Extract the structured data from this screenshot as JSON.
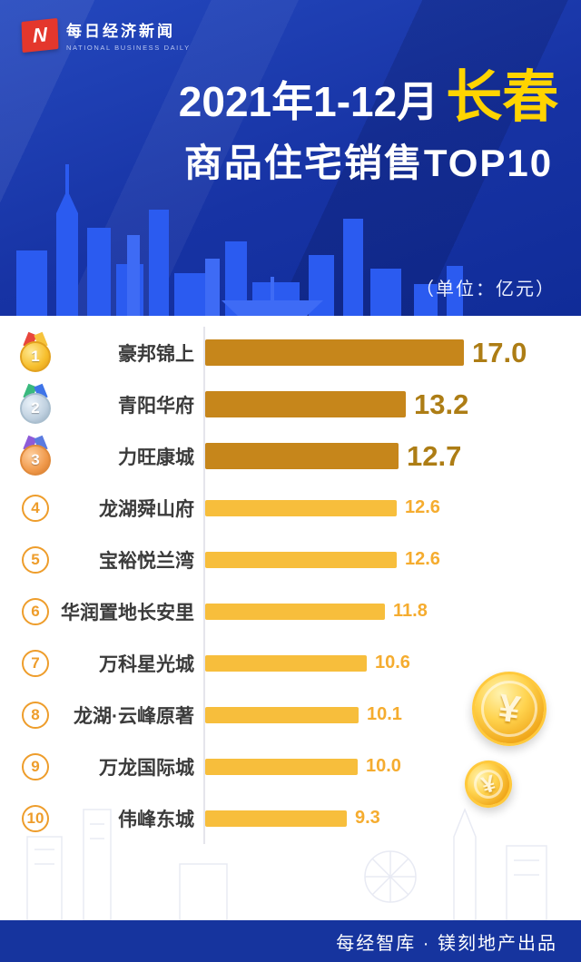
{
  "brand": {
    "logo_cn": "每日经济新闻",
    "logo_en": "NATIONAL BUSINESS DAILY",
    "logo_letter": "N"
  },
  "header": {
    "title_prefix": "2021年1-12月",
    "title_city": "长春",
    "title_line2": "商品住宅销售TOP10",
    "unit_note": "（单位：亿元）"
  },
  "chart_data": {
    "type": "bar",
    "orientation": "horizontal",
    "title": "2021年1-12月长春商品住宅销售TOP10",
    "unit": "亿元",
    "categories": [
      "豪邦锦上",
      "青阳华府",
      "力旺康城",
      "龙湖舜山府",
      "宝裕悦兰湾",
      "华润置地长安里",
      "万科星光城",
      "龙湖·云峰原著",
      "万龙国际城",
      "伟峰东城"
    ],
    "values": [
      17.0,
      13.2,
      12.7,
      12.6,
      12.6,
      11.8,
      10.6,
      10.1,
      10.0,
      9.3
    ],
    "value_labels": [
      "17.0",
      "13.2",
      "12.7",
      "12.6",
      "12.6",
      "11.8",
      "10.6",
      "10.1",
      "10.0",
      "9.3"
    ],
    "ranks": [
      1,
      2,
      3,
      4,
      5,
      6,
      7,
      8,
      9,
      10
    ],
    "xlim": [
      0,
      17
    ],
    "highlight_top": 3,
    "legend": "none",
    "grid": false,
    "colors": {
      "top_bar": "#C6861B",
      "bar": "#F7BE3C",
      "top_value": "#AD7D15",
      "value": "#F5AC2F"
    }
  },
  "decor": {
    "coin_symbol": "¥"
  },
  "footer": {
    "text": "每经智库 · 镁刻地产出品"
  }
}
